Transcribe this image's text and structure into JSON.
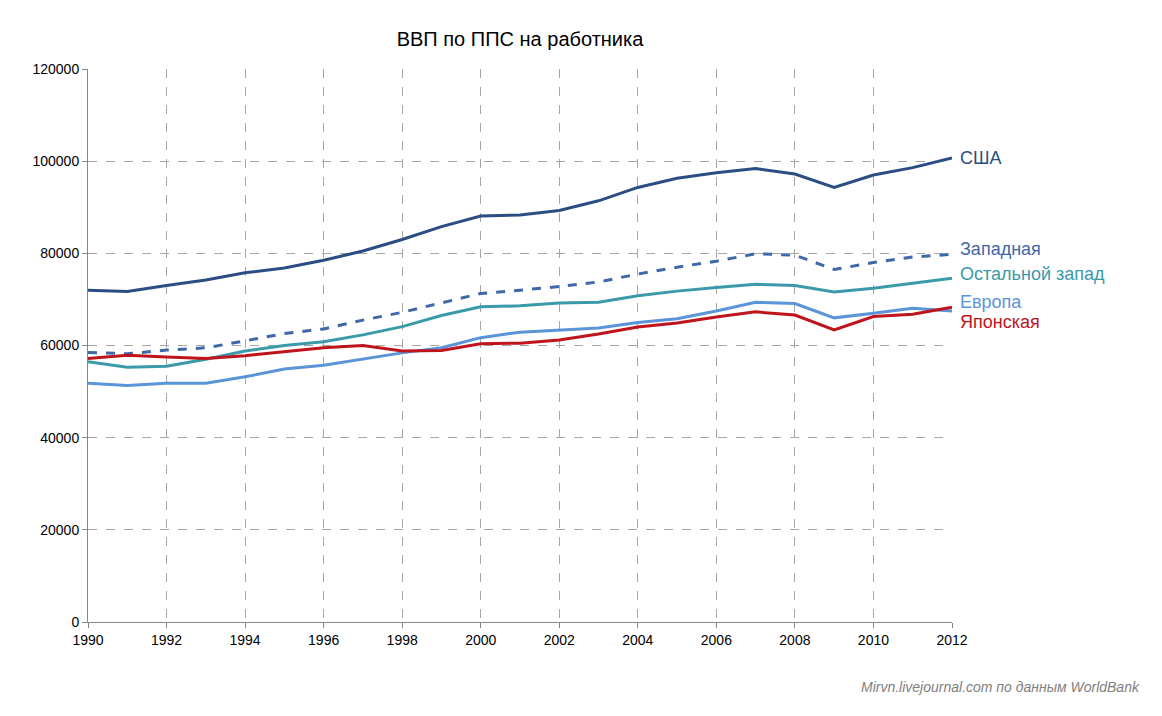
{
  "chart_data": {
    "type": "line",
    "title": "ВВП по ППС на работника",
    "annotations": [
      "Mirvn.livejournal.com по данным WorldBank"
    ],
    "x": [
      1990,
      1991,
      1992,
      1993,
      1994,
      1995,
      1996,
      1997,
      1998,
      1999,
      2000,
      2001,
      2002,
      2003,
      2004,
      2005,
      2006,
      2007,
      2008,
      2009,
      2010,
      2011,
      2012
    ],
    "xlim": [
      1990,
      2012
    ],
    "xticks": [
      1990,
      1992,
      1994,
      1996,
      1998,
      2000,
      2002,
      2004,
      2006,
      2008,
      2010,
      2012
    ],
    "ylim": [
      0,
      120000
    ],
    "yticks": [
      0,
      20000,
      40000,
      60000,
      80000,
      100000,
      120000
    ],
    "grid": true,
    "series": [
      {
        "name": "США",
        "color": "#2a4d84",
        "line_style": "solid",
        "values": [
          72000,
          71700,
          73000,
          74200,
          75800,
          76800,
          78500,
          80500,
          83000,
          85800,
          88100,
          88300,
          89300,
          91400,
          94300,
          96300,
          97500,
          98400,
          97200,
          94300,
          97000,
          98600,
          100700
        ]
      },
      {
        "name": "Западная",
        "color": "#3f68a8",
        "line_style": "dashed",
        "values": [
          58500,
          58200,
          59000,
          59500,
          61000,
          62600,
          63600,
          65500,
          67200,
          69300,
          71300,
          72000,
          72800,
          73800,
          75500,
          77000,
          78300,
          79900,
          79600,
          76500,
          78000,
          79200,
          79800
        ]
      },
      {
        "name": "Остальной запад",
        "color": "#3a9aaa",
        "line_style": "solid",
        "values": [
          56500,
          55300,
          55500,
          57000,
          58800,
          60000,
          60800,
          62300,
          64100,
          66500,
          68400,
          68600,
          69200,
          69400,
          70800,
          71800,
          72600,
          73300,
          73000,
          71600,
          72400,
          73500,
          74600
        ]
      },
      {
        "name": "Европа",
        "color": "#5b95d9",
        "line_style": "solid",
        "values": [
          51800,
          51300,
          51800,
          51800,
          53200,
          54900,
          55700,
          57100,
          58400,
          59500,
          61700,
          62900,
          63400,
          63800,
          65000,
          65800,
          67500,
          69400,
          69100,
          66000,
          67000,
          68100,
          67500
        ]
      },
      {
        "name": "Японская",
        "color": "#c0141c",
        "line_style": "solid",
        "values": [
          57200,
          57900,
          57500,
          57200,
          57800,
          58600,
          59500,
          60000,
          58800,
          58900,
          60400,
          60500,
          61200,
          62500,
          64000,
          64900,
          66200,
          67300,
          66600,
          63400,
          66300,
          66800,
          68300
        ]
      }
    ]
  }
}
